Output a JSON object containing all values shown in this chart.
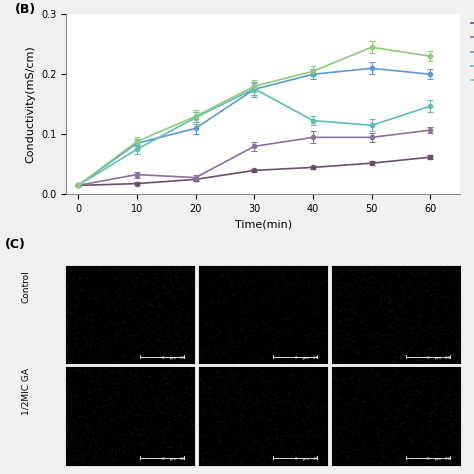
{
  "title_B": "(B)",
  "title_C": "(C)",
  "xlabel": "Time(min)",
  "ylabel": "Conductivity(mS/cm)",
  "xlim": [
    -2,
    65
  ],
  "ylim": [
    0.0,
    0.3
  ],
  "yticks": [
    0.0,
    0.1,
    0.2,
    0.3
  ],
  "xticks": [
    0,
    10,
    20,
    30,
    40,
    50,
    60
  ],
  "time": [
    0,
    10,
    20,
    30,
    40,
    50,
    60
  ],
  "series": {
    "Control": {
      "y": [
        0.015,
        0.018,
        0.025,
        0.04,
        0.045,
        0.052,
        0.062
      ],
      "err": [
        0.001,
        0.002,
        0.002,
        0.003,
        0.003,
        0.003,
        0.003
      ],
      "color": "#6b4f6b",
      "linestyle": "-"
    },
    "1/2MIC GA": {
      "y": [
        0.015,
        0.033,
        0.028,
        0.08,
        0.095,
        0.095,
        0.107
      ],
      "err": [
        0.001,
        0.005,
        0.005,
        0.008,
        0.01,
        0.008,
        0.005
      ],
      "color": "#8b6f9e",
      "linestyle": "-"
    },
    "MIC GA": {
      "y": [
        0.015,
        0.085,
        0.11,
        0.175,
        0.2,
        0.21,
        0.2
      ],
      "err": [
        0.001,
        0.008,
        0.01,
        0.012,
        0.008,
        0.01,
        0.008
      ],
      "color": "#5b9bd5",
      "linestyle": "-"
    },
    "1/2MIC UVC-GA": {
      "y": [
        0.015,
        0.075,
        0.128,
        0.176,
        0.123,
        0.115,
        0.147
      ],
      "err": [
        0.001,
        0.008,
        0.01,
        0.01,
        0.008,
        0.01,
        0.01
      ],
      "color": "#5bbfb5",
      "linestyle": "-"
    },
    "MIC UVC-GA": {
      "y": [
        0.015,
        0.088,
        0.13,
        0.18,
        0.205,
        0.245,
        0.23
      ],
      "err": [
        0.001,
        0.008,
        0.01,
        0.01,
        0.008,
        0.01,
        0.008
      ],
      "color": "#8fcc78",
      "linestyle": "-"
    }
  },
  "label_row1": "Control",
  "label_row2": "1/2MIC GA",
  "bg_color": "#f0f0f0",
  "legend_fontsize": 7,
  "axis_fontsize": 8,
  "tick_fontsize": 7
}
